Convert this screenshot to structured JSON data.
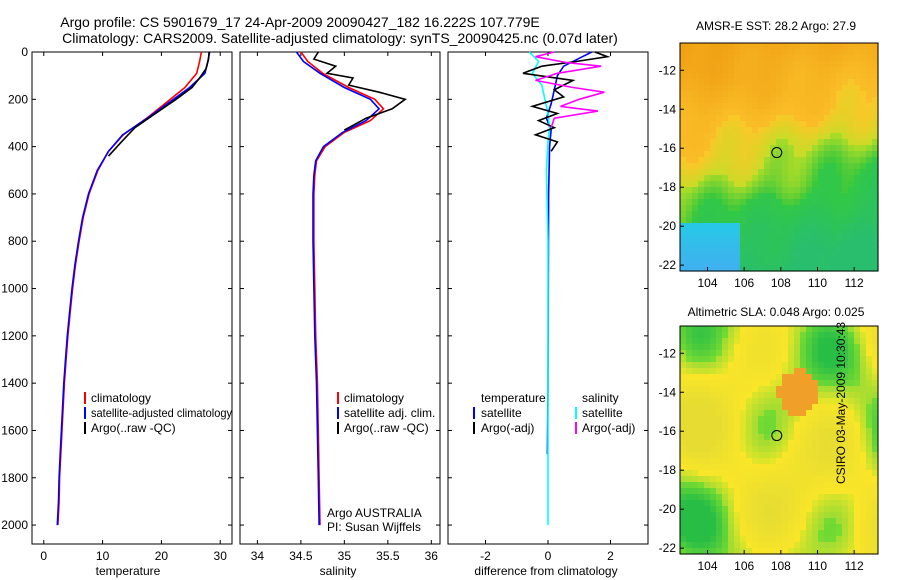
{
  "header": {
    "line1": "Argo profile: CS 5901679_17 24-Apr-2009 20090427_182 16.222S 107.779E",
    "line2": "Climatology: CARS2009. Satellite-adjusted climatology: synTS_20090425.nc (0.07d later)"
  },
  "side_label": "CSIRO 03-May-2009 10:30:43",
  "colors": {
    "climatology": "#ff0000",
    "satellite": "#0000ff",
    "argo": "#000000",
    "sal_satellite": "#00ffff",
    "sal_argo": "#ff00ff"
  },
  "chart_data": [
    {
      "id": "temperature",
      "type": "line",
      "xlabel": "temperature",
      "xlim": [
        -2,
        32
      ],
      "xticks": [
        0,
        10,
        20,
        30
      ],
      "ylim": [
        0,
        2080
      ],
      "yticks": [
        0,
        200,
        400,
        600,
        800,
        1000,
        1200,
        1400,
        1600,
        1800,
        2000
      ],
      "y_reversed": true,
      "legend": [
        "climatology",
        "satellite-adjusted climatology",
        "Argo(..raw -QC)"
      ],
      "series": [
        {
          "name": "climatology",
          "color_key": "climatology",
          "points": [
            [
              26.8,
              0
            ],
            [
              26.5,
              40
            ],
            [
              26,
              90
            ],
            [
              24,
              150
            ],
            [
              21,
              210
            ],
            [
              17.5,
              280
            ],
            [
              13.5,
              350
            ],
            [
              11,
              420
            ],
            [
              9.2,
              500
            ],
            [
              7.7,
              600
            ],
            [
              6.7,
              700
            ],
            [
              6,
              800
            ],
            [
              5.4,
              900
            ],
            [
              4.9,
              1000
            ],
            [
              4.5,
              1100
            ],
            [
              4.1,
              1200
            ],
            [
              3.8,
              1300
            ],
            [
              3.5,
              1400
            ],
            [
              3.3,
              1500
            ],
            [
              3.1,
              1600
            ],
            [
              2.9,
              1700
            ],
            [
              2.7,
              1800
            ],
            [
              2.6,
              1900
            ],
            [
              2.4,
              2000
            ]
          ]
        },
        {
          "name": "satellite-adjusted climatology",
          "color_key": "satellite",
          "points": [
            [
              28.2,
              0
            ],
            [
              27.9,
              40
            ],
            [
              27.4,
              90
            ],
            [
              24.8,
              150
            ],
            [
              21.5,
              210
            ],
            [
              17.6,
              280
            ],
            [
              13.4,
              350
            ],
            [
              11,
              420
            ],
            [
              9.1,
              500
            ],
            [
              7.6,
              600
            ],
            [
              6.6,
              700
            ],
            [
              5.9,
              800
            ],
            [
              5.3,
              900
            ],
            [
              4.8,
              1000
            ],
            [
              4.4,
              1100
            ],
            [
              4,
              1200
            ],
            [
              3.7,
              1300
            ],
            [
              3.4,
              1400
            ],
            [
              3.2,
              1500
            ],
            [
              3,
              1600
            ],
            [
              2.8,
              1700
            ],
            [
              2.6,
              1800
            ],
            [
              2.5,
              1900
            ],
            [
              2.3,
              2000
            ]
          ]
        },
        {
          "name": "Argo(..raw -QC)",
          "color_key": "argo",
          "points": [
            [
              28.1,
              0
            ],
            [
              28,
              30
            ],
            [
              27.6,
              70
            ],
            [
              26.5,
              110
            ],
            [
              25.2,
              150
            ],
            [
              22.5,
              200
            ],
            [
              19,
              260
            ],
            [
              15.5,
              320
            ],
            [
              13.2,
              380
            ],
            [
              11,
              440
            ]
          ]
        }
      ]
    },
    {
      "id": "salinity",
      "type": "line",
      "xlabel": "salinity",
      "xlim": [
        33.8,
        36.1
      ],
      "xticks": [
        34,
        34.5,
        35,
        35.5,
        36
      ],
      "ylim": [
        0,
        2080
      ],
      "y_reversed": true,
      "legend": [
        "climatology",
        "satellite adj. clim.",
        "Argo(..raw -QC)"
      ],
      "annotation": [
        "Argo AUSTRALIA",
        "PI: Susan Wijffels"
      ],
      "series": [
        {
          "name": "climatology",
          "color_key": "climatology",
          "points": [
            [
              34.5,
              0
            ],
            [
              34.58,
              40
            ],
            [
              34.75,
              90
            ],
            [
              35.05,
              150
            ],
            [
              35.35,
              200
            ],
            [
              35.45,
              240
            ],
            [
              35.3,
              290
            ],
            [
              35.0,
              340
            ],
            [
              34.78,
              400
            ],
            [
              34.68,
              460
            ],
            [
              34.66,
              520
            ],
            [
              34.65,
              600
            ],
            [
              34.65,
              800
            ],
            [
              34.66,
              1000
            ],
            [
              34.67,
              1200
            ],
            [
              34.69,
              1400
            ],
            [
              34.7,
              1600
            ],
            [
              34.71,
              1800
            ],
            [
              34.72,
              2000
            ]
          ]
        },
        {
          "name": "satellite adj. clim.",
          "color_key": "satellite",
          "points": [
            [
              34.45,
              0
            ],
            [
              34.53,
              40
            ],
            [
              34.72,
              90
            ],
            [
              35.0,
              150
            ],
            [
              35.3,
              200
            ],
            [
              35.4,
              240
            ],
            [
              35.25,
              290
            ],
            [
              34.98,
              340
            ],
            [
              34.76,
              400
            ],
            [
              34.67,
              460
            ],
            [
              34.65,
              520
            ],
            [
              34.64,
              600
            ],
            [
              34.64,
              800
            ],
            [
              34.65,
              1000
            ],
            [
              34.66,
              1200
            ],
            [
              34.68,
              1400
            ],
            [
              34.69,
              1600
            ],
            [
              34.7,
              1800
            ],
            [
              34.71,
              2000
            ]
          ]
        },
        {
          "name": "Argo(..raw -QC)",
          "color_key": "argo",
          "points": [
            [
              34.7,
              0
            ],
            [
              34.65,
              30
            ],
            [
              34.9,
              60
            ],
            [
              34.8,
              90
            ],
            [
              35.1,
              110
            ],
            [
              35.05,
              140
            ],
            [
              35.4,
              170
            ],
            [
              35.7,
              200
            ],
            [
              35.55,
              240
            ],
            [
              35.25,
              280
            ],
            [
              35.0,
              330
            ]
          ]
        }
      ]
    },
    {
      "id": "difference",
      "type": "line",
      "xlabel": "difference from climatology",
      "xlim": [
        -3.2,
        3.2
      ],
      "xticks": [
        -2,
        0,
        2
      ],
      "ylim": [
        0,
        2080
      ],
      "y_reversed": true,
      "legend_titles": [
        "temperature",
        "salinity"
      ],
      "legend": [
        "satellite",
        "Argo(-adj)",
        "satellite",
        "Argo(-adj)"
      ],
      "series": [
        {
          "name": "temperature satellite",
          "color_key": "satellite",
          "points": [
            [
              1.4,
              0
            ],
            [
              1.1,
              20
            ],
            [
              0.5,
              60
            ],
            [
              0.3,
              100
            ],
            [
              0.2,
              160
            ],
            [
              0.1,
              220
            ],
            [
              -0.05,
              280
            ],
            [
              0.1,
              330
            ],
            [
              0.05,
              400
            ],
            [
              0.02,
              600
            ],
            [
              0.01,
              1000
            ],
            [
              0,
              1400
            ],
            [
              -0.02,
              1700
            ]
          ]
        },
        {
          "name": "salinity satellite",
          "color_key": "sal_satellite",
          "points": [
            [
              -0.6,
              0
            ],
            [
              -0.3,
              40
            ],
            [
              -0.5,
              90
            ],
            [
              -0.2,
              140
            ],
            [
              -0.1,
              200
            ],
            [
              0,
              260
            ],
            [
              0.05,
              320
            ],
            [
              0,
              380
            ],
            [
              -0.05,
              500
            ],
            [
              0,
              800
            ],
            [
              0,
              1200
            ],
            [
              0,
              1600
            ],
            [
              0,
              2000
            ]
          ]
        },
        {
          "name": "temperature Argo(-adj)",
          "color_key": "argo",
          "points": [
            [
              1.5,
              0
            ],
            [
              1.9,
              20
            ],
            [
              0.9,
              40
            ],
            [
              -0.2,
              60
            ],
            [
              -0.8,
              90
            ],
            [
              0.8,
              120
            ],
            [
              0.2,
              160
            ],
            [
              0.5,
              190
            ],
            [
              -0.5,
              230
            ],
            [
              0.3,
              260
            ],
            [
              -0.3,
              290
            ],
            [
              0.2,
              320
            ],
            [
              -0.4,
              350
            ],
            [
              0.3,
              380
            ],
            [
              0.1,
              420
            ]
          ]
        },
        {
          "name": "salinity Argo(-adj)",
          "color_key": "sal_argo",
          "points": [
            [
              0.2,
              0
            ],
            [
              -0.4,
              20
            ],
            [
              0.6,
              45
            ],
            [
              1.7,
              60
            ],
            [
              0.3,
              90
            ],
            [
              -0.4,
              120
            ],
            [
              0.8,
              150
            ],
            [
              1.8,
              170
            ],
            [
              1.0,
              200
            ],
            [
              0.4,
              230
            ],
            [
              1.6,
              250
            ],
            [
              0.2,
              280
            ],
            [
              0.1,
              320
            ]
          ]
        }
      ]
    },
    {
      "id": "sst_map",
      "type": "heatmap",
      "title": "AMSR-E SST: 28.2 Argo: 27.9",
      "xlim": [
        102.5,
        113.3
      ],
      "ylim": [
        -22.3,
        -10.6
      ],
      "xticks": [
        104,
        106,
        108,
        110,
        112
      ],
      "yticks": [
        -12,
        -14,
        -16,
        -18,
        -20,
        -22
      ],
      "marker": {
        "lon": 107.779,
        "lat": -16.222
      }
    },
    {
      "id": "sla_map",
      "type": "heatmap",
      "title": "Altimetric SLA: 0.048 Argo: 0.025",
      "xlim": [
        102.5,
        113.3
      ],
      "ylim": [
        -22.3,
        -10.6
      ],
      "xticks": [
        104,
        106,
        108,
        110,
        112
      ],
      "yticks": [
        -12,
        -14,
        -16,
        -18,
        -20,
        -22
      ],
      "marker": {
        "lon": 107.779,
        "lat": -16.222
      }
    }
  ]
}
